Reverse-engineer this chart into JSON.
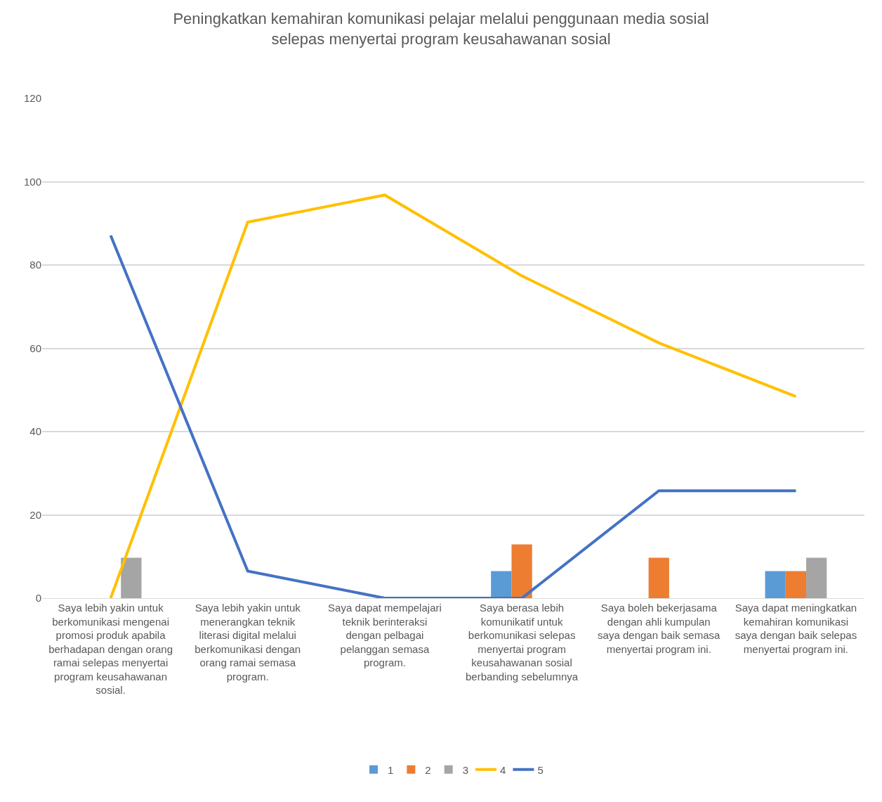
{
  "chart_data": {
    "type": "bar",
    "title": "Peningkatkan kemahiran komunikasi pelajar melalui penggunaan media sosial selepas menyertai program keusahawanan sosial",
    "categories": [
      "Saya lebih yakin untuk berkomunikasi mengenai promosi produk apabila berhadapan dengan orang ramai selepas menyertai program keusahawanan sosial.",
      "Saya lebih yakin untuk menerangkan teknik literasi digital melalui berkomunikasi dengan orang ramai semasa program.",
      "Saya dapat mempelajari teknik berinteraksi dengan pelbagai pelanggan semasa program.",
      "Saya berasa lebih komunikatif untuk berkomunikasi selepas menyertai program keusahawanan sosial berbanding sebelumnya",
      "Saya boleh bekerjasama dengan ahli kumpulan saya dengan baik semasa menyertai program ini.",
      "Saya dapat meningkatkan kemahiran komunikasi saya dengan baik selepas menyertai program ini."
    ],
    "series": [
      {
        "name": "1",
        "color": "#5b9bd5",
        "values": [
          0,
          0,
          0,
          6.5,
          0,
          6.5
        ]
      },
      {
        "name": "2",
        "color": "#ed7d31",
        "values": [
          0,
          0,
          0,
          12.9,
          9.7,
          6.5
        ]
      },
      {
        "name": "3",
        "color": "#a5a5a5",
        "values": [
          9.7,
          0,
          0,
          0,
          0,
          9.7
        ]
      },
      {
        "name": "4",
        "type": "line",
        "color": "#ffc000",
        "values": [
          0,
          90.3,
          96.8,
          77.4,
          61.3,
          48.4
        ]
      },
      {
        "name": "5",
        "type": "line",
        "color": "#4472c4",
        "values": [
          87.1,
          6.5,
          0,
          0,
          25.8,
          25.8
        ]
      }
    ],
    "ylim": [
      0,
      120
    ],
    "yticks": [
      0,
      20,
      40,
      60,
      80,
      100,
      120
    ],
    "grid": "y",
    "legend": "bottom",
    "marker": "none",
    "line_style": "solid"
  }
}
